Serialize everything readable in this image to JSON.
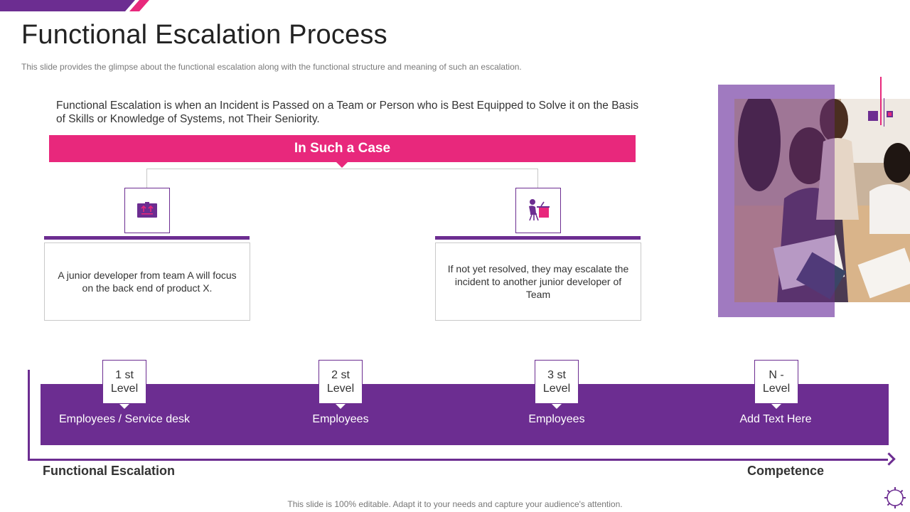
{
  "slide": {
    "title": "Functional Escalation Process",
    "subtitle": "This slide provides  the glimpse about the functional escalation along with the functional structure and meaning  of such an escalation.",
    "definition": "Functional  Escalation is when an Incident  is Passed on a Team or Person who is Best Equipped to Solve it on the Basis of Skills or Knowledge of Systems, not Their Seniority.",
    "case_banner": "In Such a Case",
    "cards": [
      {
        "icon": "briefcase-icon",
        "text": "A junior developer from team A will focus on the back end of product X."
      },
      {
        "icon": "developer-at-desk-icon",
        "text": "If not yet resolved, they may escalate the incident to another junior developer of Team"
      }
    ],
    "levels": [
      {
        "level": "1 st Level",
        "label": "Employees / Service desk"
      },
      {
        "level": "2 st Level",
        "label": "Employees"
      },
      {
        "level": "3 st Level",
        "label": "Employees"
      },
      {
        "level": "N - Level",
        "label": "Add Text Here"
      }
    ],
    "axis_left": "Functional Escalation",
    "axis_right": "Competence",
    "footer": "This slide is 100% editable. Adapt it to your needs and capture your audience's attention."
  },
  "colors": {
    "primary_purple": "#6c2d91",
    "accent_pink": "#e8287c",
    "light_purple": "#a07ac0"
  }
}
